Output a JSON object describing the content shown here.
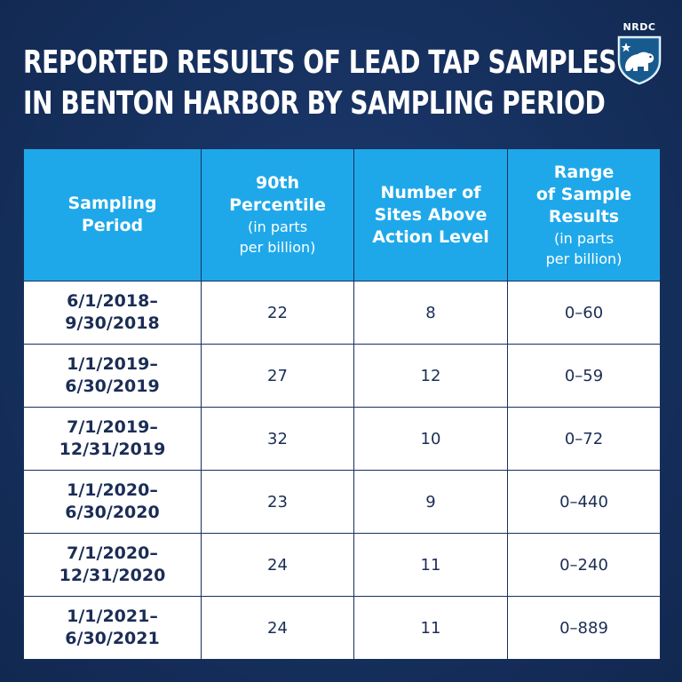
{
  "title": {
    "line1": "REPORTED RESULTS OF LEAD TAP SAMPLES",
    "line2": "IN BENTON HARBOR BY SAMPLING PERIOD"
  },
  "logo": {
    "text": "NRDC",
    "icon": "polar-bear-shield-icon"
  },
  "colors": {
    "background": "#16305e",
    "header": "#1fa8e9",
    "cell": "#ffffff",
    "text_dark": "#1b2d55"
  },
  "chart_data": {
    "type": "table",
    "title": "REPORTED RESULTS OF LEAD TAP SAMPLES IN BENTON HARBOR BY SAMPLING PERIOD",
    "columns": [
      {
        "main": [
          "Sampling",
          "Period"
        ],
        "sub": []
      },
      {
        "main": [
          "90th",
          "Percentile"
        ],
        "sub": [
          "(in parts",
          "per billion)"
        ]
      },
      {
        "main": [
          "Number of",
          "Sites Above",
          "Action Level"
        ],
        "sub": []
      },
      {
        "main": [
          "Range",
          "of Sample",
          "Results"
        ],
        "sub": [
          "(in parts",
          "per billion)"
        ]
      }
    ],
    "rows": [
      {
        "period": [
          "6/1/2018–",
          "9/30/2018"
        ],
        "percentile_90th": "22",
        "sites_above": "8",
        "range": "0–60"
      },
      {
        "period": [
          "1/1/2019–",
          "6/30/2019"
        ],
        "percentile_90th": "27",
        "sites_above": "12",
        "range": "0–59"
      },
      {
        "period": [
          "7/1/2019–",
          "12/31/2019"
        ],
        "percentile_90th": "32",
        "sites_above": "10",
        "range": "0–72"
      },
      {
        "period": [
          "1/1/2020–",
          "6/30/2020"
        ],
        "percentile_90th": "23",
        "sites_above": "9",
        "range": "0–440"
      },
      {
        "period": [
          "7/1/2020–",
          "12/31/2020"
        ],
        "percentile_90th": "24",
        "sites_above": "11",
        "range": "0–240"
      },
      {
        "period": [
          "1/1/2021–",
          "6/30/2021"
        ],
        "percentile_90th": "24",
        "sites_above": "11",
        "range": "0–889"
      }
    ]
  }
}
